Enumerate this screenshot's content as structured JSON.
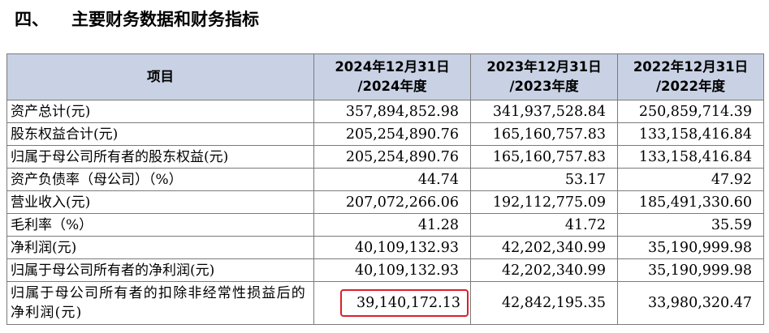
{
  "heading": {
    "number": "四、",
    "title": "主要财务数据和财务指标"
  },
  "table": {
    "columns": [
      "项目",
      "2024年12月31日\n/2024年度",
      "2023年12月31日\n/2023年度",
      "2022年12月31日\n/2022年度"
    ],
    "column_lines": [
      [
        "项目"
      ],
      [
        "2024年12月31日",
        "/2024年度"
      ],
      [
        "2023年12月31日",
        "/2023年度"
      ],
      [
        "2022年12月31日",
        "/2022年度"
      ]
    ],
    "rows": [
      {
        "label": "资产总计(元)",
        "values": [
          "357,894,852.98",
          "341,937,528.84",
          "250,859,714.39"
        ]
      },
      {
        "label": "股东权益合计(元)",
        "values": [
          "205,254,890.76",
          "165,160,757.83",
          "133,158,416.84"
        ]
      },
      {
        "label": "归属于母公司所有者的股东权益(元)",
        "values": [
          "205,254,890.76",
          "165,160,757.83",
          "133,158,416.84"
        ]
      },
      {
        "label": "资产负债率（母公司）（%）",
        "values": [
          "44.74",
          "53.17",
          "47.92"
        ]
      },
      {
        "label": "营业收入(元)",
        "values": [
          "207,072,266.06",
          "192,112,775.09",
          "185,491,330.60"
        ]
      },
      {
        "label": "毛利率（%）",
        "values": [
          "41.28",
          "41.72",
          "35.59"
        ]
      },
      {
        "label": "净利润(元)",
        "values": [
          "40,109,132.93",
          "42,202,340.99",
          "35,190,999.98"
        ]
      },
      {
        "label": "归属于母公司所有者的净利润(元)",
        "values": [
          "40,109,132.93",
          "42,202,340.99",
          "35,190,999.98"
        ]
      },
      {
        "label": "归属于母公司所有者的扣除非经常性损益后的净利润(元)",
        "values": [
          "39,140,172.13",
          "42,842,195.35",
          "33,980,320.47"
        ]
      }
    ],
    "highlight_color": "#d9202a",
    "header_bg": "#c9d2e4"
  }
}
